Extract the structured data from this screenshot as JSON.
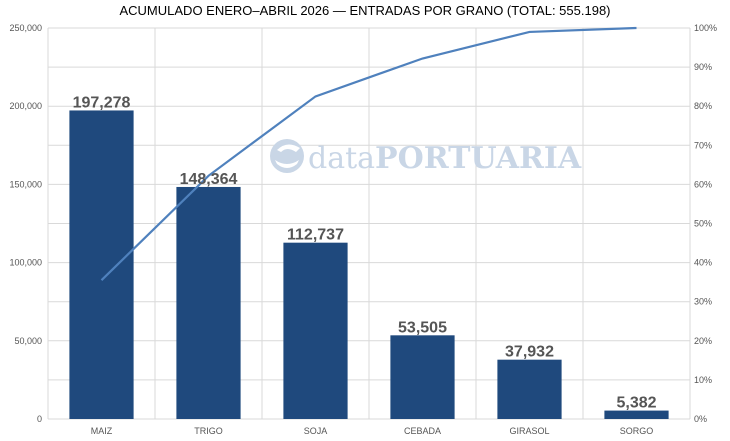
{
  "title": "ACUMULADO ENERO–ABRIL 2026 — ENTRADAS POR GRANO (TOTAL: 555.198)",
  "watermark": {
    "text_a": "data",
    "text_b": "PORTUARIA"
  },
  "colors": {
    "bar": "#1f497d",
    "line": "#4f81bd",
    "watermark": "#c9d6e6"
  },
  "chart_data": {
    "type": "bar",
    "title": "ACUMULADO ENERO–ABRIL 2026 — ENTRADAS POR GRANO (TOTAL: 555.198)",
    "categories": [
      "MAIZ",
      "TRIGO",
      "SOJA",
      "CEBADA",
      "GIRASOL",
      "SORGO"
    ],
    "values": [
      197278,
      148364,
      112737,
      53505,
      37932,
      5382
    ],
    "data_labels": [
      "197,278",
      "148,364",
      "112,737",
      "53,505",
      "37,932",
      "5,382"
    ],
    "ylim": [
      0,
      250000
    ],
    "yticks": [
      "0",
      "50,000",
      "100,000",
      "150,000",
      "200,000",
      "250,000"
    ],
    "y2lim": [
      0,
      100
    ],
    "y2ticks": [
      "0%",
      "10%",
      "20%",
      "30%",
      "40%",
      "50%",
      "60%",
      "70%",
      "80%",
      "90%",
      "100%"
    ],
    "cumulative_pct": [
      35.5,
      62.2,
      82.5,
      92.2,
      99.0,
      100.0
    ],
    "grid": true,
    "legend": "none"
  }
}
